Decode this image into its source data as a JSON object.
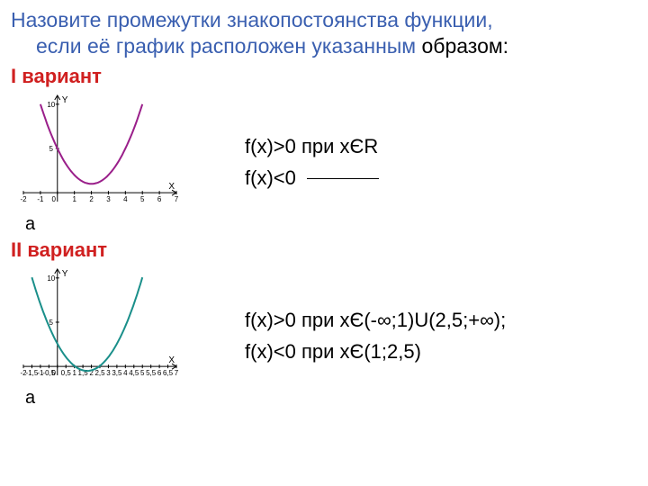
{
  "title_line1": "Назовите промежутки знакопостоянства функции,",
  "title_line2_a": "если её график расположен указанным ",
  "title_line2_b": "образом:",
  "variant1_label": "I вариант",
  "variant2_label": "II вариант",
  "chart_caption": "а",
  "formula1a": "f(x)>0 при xЄR",
  "formula1b": "f(x)<0",
  "formula2a": "f(x)>0 при xЄ(-∞;1)U(2,5;+∞);",
  "formula2b": "f(x)<0 при xЄ(1;2,5)",
  "chart1": {
    "type": "line",
    "curve_color": "#9a1f8a",
    "background_color": "#ffffff",
    "xlim": [
      -2,
      7
    ],
    "ylim": [
      -1,
      11
    ],
    "xticks": [
      -2,
      -1,
      0,
      1,
      2,
      3,
      4,
      5,
      6,
      7
    ],
    "yticks": [
      5,
      10
    ],
    "vertex": [
      2,
      1
    ],
    "a": 1.0,
    "points_x": [
      -1,
      -0.5,
      0,
      0.5,
      1,
      1.5,
      2,
      2.5,
      3,
      3.5,
      4,
      4.5,
      5
    ],
    "axis_label_x": "X",
    "axis_label_y": "Y"
  },
  "chart2": {
    "type": "line",
    "curve_color": "#1a8f8a",
    "background_color": "#ffffff",
    "xlim": [
      -2,
      7
    ],
    "ylim": [
      -1,
      11
    ],
    "xticks": [
      -2,
      -1.5,
      -1,
      -0.5,
      0,
      0.5,
      1,
      1.5,
      2,
      2.5,
      3,
      3.5,
      4,
      4.5,
      5,
      5.5,
      6,
      6.5,
      7
    ],
    "yticks": [
      5,
      10
    ],
    "vertex": [
      1.75,
      -0.5
    ],
    "a": 1.0,
    "roots": [
      1,
      2.5
    ],
    "points_x": [
      -1.5,
      -1,
      -0.5,
      0,
      0.5,
      1,
      1.5,
      1.75,
      2,
      2.5,
      3,
      3.5,
      4,
      4.5,
      5
    ],
    "axis_label_x": "X",
    "axis_label_y": "Y"
  }
}
